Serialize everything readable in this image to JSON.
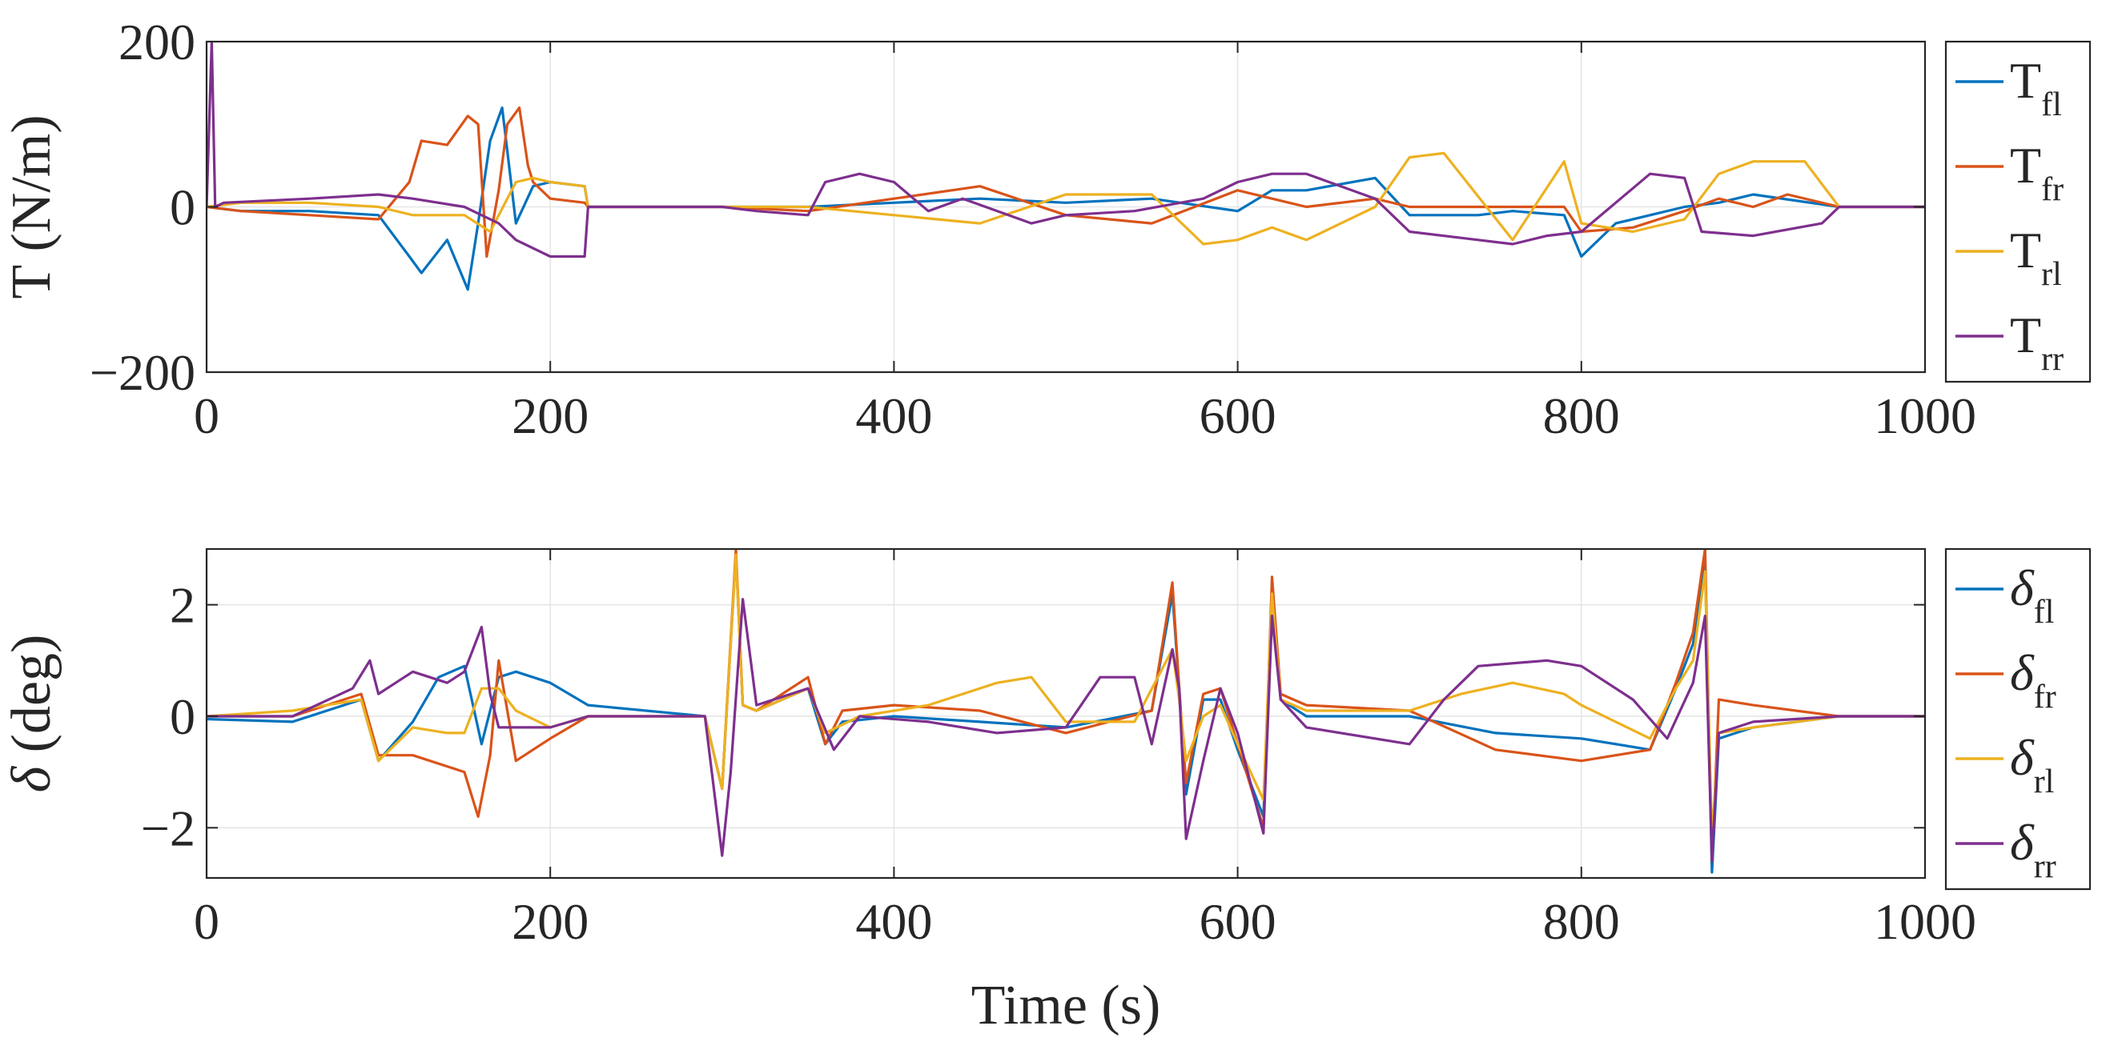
{
  "chart_data": [
    {
      "type": "line",
      "ylabel": "T (N/m)",
      "xlabel": "",
      "xlim": [
        0,
        1000
      ],
      "ylim": [
        -200,
        200
      ],
      "xticks": [
        "0",
        "200",
        "400",
        "600",
        "800",
        "1000"
      ],
      "yticks": [
        "200",
        "0",
        "−200"
      ],
      "grid": true,
      "legend_position": "outside-right",
      "series": [
        {
          "name": "T",
          "sub": "fl",
          "color": "#0072BD",
          "x": [
            0,
            20,
            60,
            100,
            118,
            125,
            140,
            152,
            158,
            165,
            172,
            180,
            190,
            200,
            220,
            222,
            300,
            350,
            400,
            450,
            500,
            550,
            600,
            620,
            640,
            680,
            700,
            740,
            760,
            790,
            800,
            820,
            860,
            880,
            900,
            950,
            1000
          ],
          "y": [
            0,
            -5,
            -5,
            -10,
            -60,
            -80,
            -40,
            -100,
            -20,
            80,
            120,
            -20,
            25,
            30,
            25,
            0,
            0,
            0,
            5,
            10,
            5,
            10,
            -5,
            20,
            20,
            35,
            -10,
            -10,
            -5,
            -10,
            -60,
            -20,
            0,
            5,
            15,
            0,
            0
          ]
        },
        {
          "name": "T",
          "sub": "fr",
          "color": "#D95319",
          "x": [
            0,
            20,
            60,
            100,
            118,
            125,
            140,
            152,
            158,
            163,
            170,
            175,
            182,
            187,
            190,
            200,
            220,
            222,
            300,
            350,
            400,
            450,
            500,
            550,
            600,
            620,
            640,
            680,
            700,
            760,
            790,
            800,
            830,
            860,
            880,
            900,
            920,
            950,
            1000
          ],
          "y": [
            0,
            -5,
            -10,
            -15,
            30,
            80,
            75,
            110,
            100,
            -60,
            20,
            100,
            120,
            50,
            30,
            10,
            5,
            0,
            0,
            -5,
            10,
            25,
            -10,
            -20,
            20,
            10,
            0,
            10,
            0,
            0,
            0,
            -30,
            -25,
            -5,
            10,
            0,
            15,
            0,
            0
          ]
        },
        {
          "name": "T",
          "sub": "rl",
          "color": "#EDB120",
          "x": [
            0,
            20,
            60,
            100,
            120,
            150,
            165,
            180,
            190,
            200,
            220,
            222,
            300,
            350,
            400,
            450,
            500,
            550,
            580,
            600,
            620,
            640,
            680,
            700,
            720,
            760,
            790,
            800,
            830,
            860,
            880,
            900,
            930,
            950,
            1000
          ],
          "y": [
            0,
            5,
            5,
            0,
            -10,
            -10,
            -30,
            30,
            35,
            30,
            25,
            0,
            0,
            0,
            -10,
            -20,
            15,
            15,
            -45,
            -40,
            -25,
            -40,
            0,
            60,
            65,
            -40,
            55,
            -20,
            -30,
            -15,
            40,
            55,
            55,
            0,
            0
          ]
        },
        {
          "name": "T",
          "sub": "rr",
          "color": "#7E2F8E",
          "x": [
            0,
            3,
            5,
            10,
            60,
            100,
            120,
            150,
            160,
            170,
            180,
            200,
            220,
            222,
            300,
            320,
            350,
            360,
            380,
            400,
            420,
            440,
            480,
            500,
            540,
            580,
            600,
            620,
            640,
            680,
            700,
            740,
            760,
            780,
            800,
            840,
            860,
            870,
            900,
            940,
            950,
            1000
          ],
          "y": [
            0,
            200,
            0,
            5,
            10,
            15,
            10,
            0,
            -10,
            -20,
            -40,
            -60,
            -60,
            0,
            0,
            -5,
            -10,
            30,
            40,
            30,
            -5,
            10,
            -20,
            -10,
            -5,
            10,
            30,
            40,
            40,
            10,
            -30,
            -40,
            -45,
            -35,
            -30,
            40,
            35,
            -30,
            -35,
            -20,
            0,
            0
          ]
        }
      ]
    },
    {
      "type": "line",
      "ylabel": "δ (deg)",
      "xlabel": "Time (s)",
      "xlim": [
        0,
        1000
      ],
      "ylim": [
        -2.9,
        3.0
      ],
      "xticks": [
        "0",
        "200",
        "400",
        "600",
        "800",
        "1000"
      ],
      "yticks": [
        "2",
        "0",
        "−2"
      ],
      "grid": true,
      "legend_position": "outside-right",
      "series": [
        {
          "name": "δ",
          "sub": "fl",
          "color": "#0072BD",
          "x": [
            0,
            50,
            90,
            100,
            120,
            135,
            150,
            160,
            170,
            180,
            200,
            222,
            290,
            300,
            308,
            312,
            320,
            350,
            360,
            370,
            400,
            450,
            500,
            550,
            562,
            566,
            570,
            580,
            590,
            600,
            615,
            620,
            625,
            640,
            700,
            750,
            800,
            840,
            855,
            865,
            872,
            876,
            880,
            900,
            950,
            1000
          ],
          "y": [
            -0.05,
            -0.1,
            0.3,
            -0.8,
            -0.1,
            0.7,
            0.9,
            -0.5,
            0.7,
            0.8,
            0.6,
            0.2,
            0,
            -1.3,
            2.9,
            0.2,
            0.1,
            0.5,
            -0.5,
            -0.1,
            0,
            -0.1,
            -0.2,
            0.1,
            2.2,
            0.5,
            -1.4,
            0.3,
            0.3,
            -0.6,
            -1.8,
            2.3,
            0.3,
            0,
            0,
            -0.3,
            -0.4,
            -0.6,
            0.5,
            1.3,
            2.8,
            -2.8,
            -0.4,
            -0.2,
            0,
            0
          ]
        },
        {
          "name": "δ",
          "sub": "fr",
          "color": "#D95319",
          "x": [
            0,
            50,
            90,
            100,
            120,
            150,
            158,
            165,
            170,
            180,
            200,
            222,
            290,
            300,
            308,
            312,
            320,
            350,
            360,
            370,
            400,
            450,
            500,
            550,
            562,
            566,
            570,
            580,
            590,
            600,
            615,
            620,
            625,
            640,
            700,
            750,
            800,
            840,
            855,
            865,
            872,
            876,
            880,
            900,
            950,
            1000
          ],
          "y": [
            0,
            0,
            0.4,
            -0.7,
            -0.7,
            -1,
            -1.8,
            -0.7,
            1,
            -0.8,
            -0.4,
            0,
            0,
            -1.3,
            3.0,
            0.2,
            0.1,
            0.7,
            -0.5,
            0.1,
            0.2,
            0.1,
            -0.3,
            0.1,
            2.4,
            0.5,
            -1.2,
            0.4,
            0.5,
            -0.5,
            -2,
            2.5,
            0.4,
            0.2,
            0.1,
            -0.6,
            -0.8,
            -0.6,
            0.6,
            1.5,
            3.0,
            -2.6,
            0.3,
            0.2,
            0,
            0
          ]
        },
        {
          "name": "δ",
          "sub": "rl",
          "color": "#EDB120",
          "x": [
            0,
            50,
            90,
            100,
            120,
            140,
            150,
            160,
            170,
            180,
            200,
            222,
            290,
            300,
            308,
            312,
            320,
            350,
            360,
            380,
            420,
            460,
            480,
            500,
            540,
            562,
            566,
            570,
            580,
            590,
            600,
            615,
            620,
            625,
            640,
            700,
            730,
            760,
            790,
            800,
            840,
            855,
            865,
            872,
            876,
            880,
            900,
            950,
            1000
          ],
          "y": [
            0,
            0.1,
            0.3,
            -0.8,
            -0.2,
            -0.3,
            -0.3,
            0.5,
            0.5,
            0.1,
            -0.2,
            0,
            0,
            -1.3,
            2.9,
            0.2,
            0.1,
            0.5,
            -0.3,
            0,
            0.2,
            0.6,
            0.7,
            -0.1,
            -0.1,
            1.2,
            0.3,
            -0.8,
            0,
            0.2,
            -0.5,
            -1.5,
            2.2,
            0.3,
            0.1,
            0.1,
            0.4,
            0.6,
            0.4,
            0.2,
            -0.4,
            0.5,
            1,
            2.6,
            -2.2,
            -0.3,
            -0.2,
            0,
            0
          ]
        },
        {
          "name": "δ",
          "sub": "rr",
          "color": "#7E2F8E",
          "x": [
            0,
            50,
            85,
            95,
            100,
            110,
            120,
            140,
            150,
            160,
            165,
            170,
            180,
            200,
            222,
            290,
            300,
            305,
            312,
            320,
            350,
            365,
            380,
            420,
            460,
            500,
            520,
            540,
            550,
            562,
            566,
            570,
            580,
            590,
            600,
            615,
            620,
            625,
            640,
            700,
            720,
            740,
            780,
            800,
            830,
            850,
            865,
            872,
            876,
            880,
            900,
            950,
            1000
          ],
          "y": [
            0,
            0,
            0.5,
            1,
            0.4,
            0.6,
            0.8,
            0.6,
            0.8,
            1.6,
            0.4,
            -0.2,
            -0.2,
            -0.2,
            0,
            0,
            -2.5,
            -1,
            2.1,
            0.2,
            0.5,
            -0.6,
            0,
            -0.1,
            -0.3,
            -0.2,
            0.7,
            0.7,
            -0.5,
            1.2,
            0.5,
            -2.2,
            -0.8,
            0.5,
            -0.3,
            -2.1,
            1.8,
            0.3,
            -0.2,
            -0.5,
            0.3,
            0.9,
            1,
            0.9,
            0.3,
            -0.4,
            0.6,
            1.8,
            -2.6,
            -0.3,
            -0.1,
            0,
            0
          ]
        }
      ]
    }
  ]
}
